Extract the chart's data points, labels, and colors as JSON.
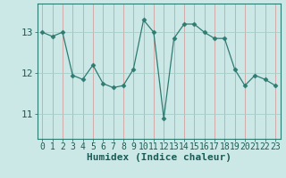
{
  "x": [
    0,
    1,
    2,
    3,
    4,
    5,
    6,
    7,
    8,
    9,
    10,
    11,
    12,
    13,
    14,
    15,
    16,
    17,
    18,
    19,
    20,
    21,
    22,
    23
  ],
  "y": [
    13.0,
    12.9,
    13.0,
    11.95,
    11.85,
    12.2,
    11.75,
    11.65,
    11.7,
    12.1,
    13.3,
    13.0,
    10.9,
    12.85,
    13.2,
    13.2,
    13.0,
    12.85,
    12.85,
    12.1,
    11.7,
    11.95,
    11.85,
    11.7
  ],
  "line_color": "#2e7b72",
  "marker": "D",
  "marker_size": 2.5,
  "bg_color": "#cce8e6",
  "grid_color": "#a8ceca",
  "xlabel": "Humidex (Indice chaleur)",
  "xlabel_fontsize": 8,
  "yticks": [
    11,
    12,
    13
  ],
  "ylim": [
    10.4,
    13.7
  ],
  "xlim": [
    -0.5,
    23.5
  ],
  "xticks": [
    0,
    1,
    2,
    3,
    4,
    5,
    6,
    7,
    8,
    9,
    10,
    11,
    12,
    13,
    14,
    15,
    16,
    17,
    18,
    19,
    20,
    21,
    22,
    23
  ],
  "tick_fontsize": 7,
  "label_color": "#1a5c55",
  "spine_color": "#2e7b72"
}
